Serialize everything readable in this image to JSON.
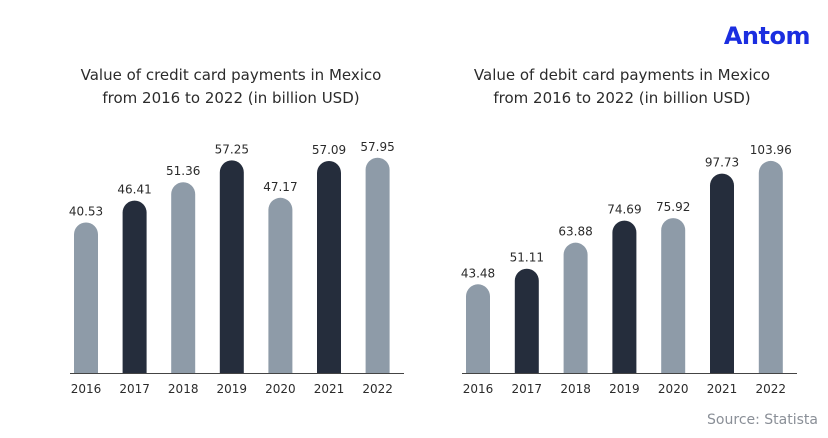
{
  "logo": {
    "text": "Antom",
    "color": "#1b2ee0"
  },
  "source": "Source: Statista",
  "colors": {
    "light": "#8e9ba8",
    "dark": "#252d3c",
    "axis": "#444444",
    "label": "#2b2b2b"
  },
  "chart_data": [
    {
      "type": "bar",
      "title_lines": [
        "Value of credit card payments in Mexico",
        "from 2016 to 2022 (in billion USD)"
      ],
      "categories": [
        "2016",
        "2017",
        "2018",
        "2019",
        "2020",
        "2021",
        "2022"
      ],
      "values": [
        40.53,
        46.41,
        51.36,
        57.25,
        47.17,
        57.09,
        57.95
      ],
      "value_labels": [
        "40.53",
        "46.41",
        "51.36",
        "57.25",
        "47.17",
        "57.09",
        "57.95"
      ],
      "bar_shades": [
        "light",
        "dark",
        "light",
        "dark",
        "light",
        "dark",
        "light"
      ],
      "ylim": [
        0,
        70
      ],
      "grid": false
    },
    {
      "type": "bar",
      "title_lines": [
        "Value of debit card payments in Mexico",
        "from 2016 to 2022 (in billion USD)"
      ],
      "categories": [
        "2016",
        "2017",
        "2018",
        "2019",
        "2020",
        "2021",
        "2022"
      ],
      "values": [
        43.48,
        51.11,
        63.88,
        74.69,
        75.92,
        97.73,
        103.96
      ],
      "value_labels": [
        "43.48",
        "51.11",
        "63.88",
        "74.69",
        "75.92",
        "97.73",
        "103.96"
      ],
      "bar_shades": [
        "light",
        "dark",
        "light",
        "dark",
        "light",
        "dark",
        "light"
      ],
      "ylim": [
        0,
        125
      ],
      "grid": false
    }
  ]
}
